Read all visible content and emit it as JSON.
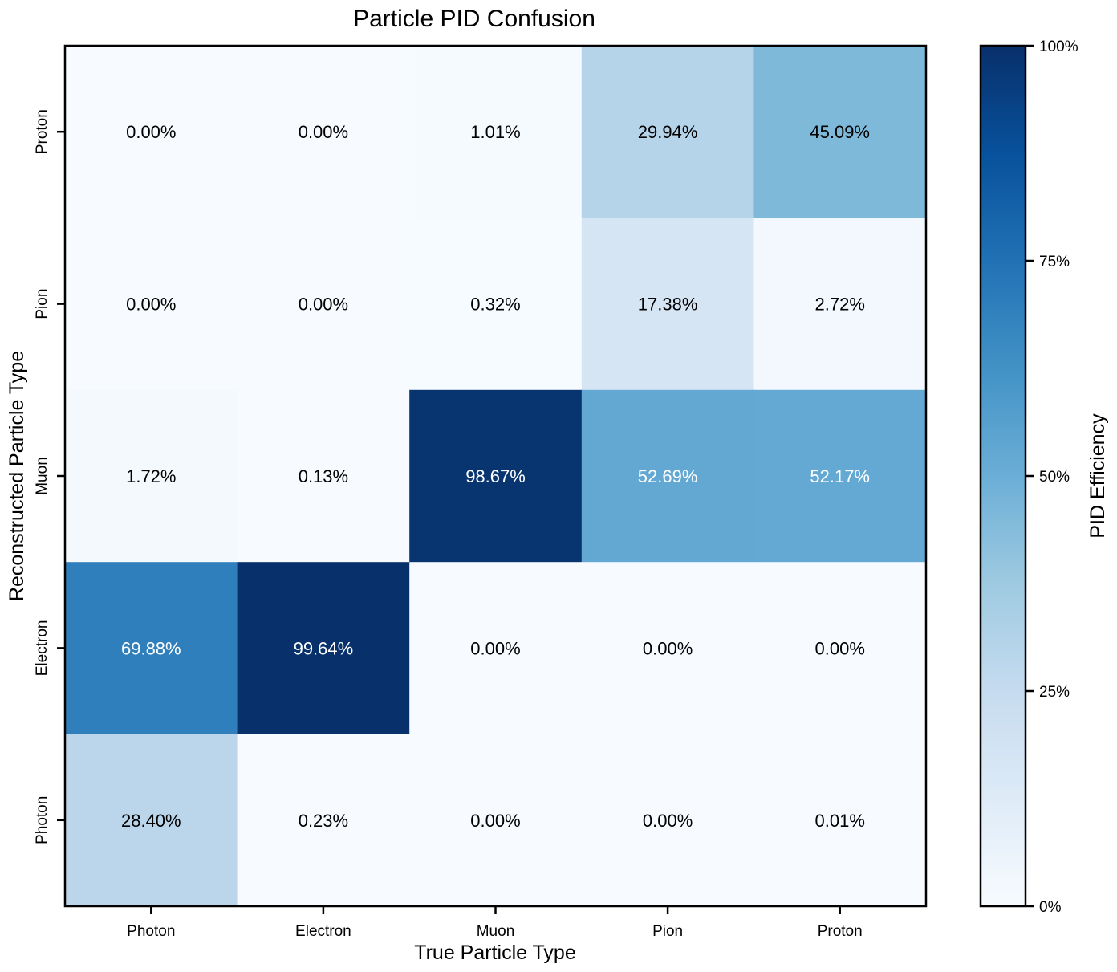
{
  "chart_data": {
    "type": "heatmap",
    "title": "Particle PID Confusion",
    "xlabel": "True Particle Type",
    "ylabel": "Reconstructed Particle Type",
    "x_categories": [
      "Photon",
      "Electron",
      "Muon",
      "Pion",
      "Proton"
    ],
    "y_categories": [
      "Proton",
      "Pion",
      "Muon",
      "Electron",
      "Photon"
    ],
    "values": [
      [
        0.0,
        0.0,
        1.01,
        29.94,
        45.09
      ],
      [
        0.0,
        0.0,
        0.32,
        17.38,
        2.72
      ],
      [
        1.72,
        0.13,
        98.67,
        52.69,
        52.17
      ],
      [
        69.88,
        99.64,
        0.0,
        0.0,
        0.0
      ],
      [
        28.4,
        0.23,
        0.0,
        0.0,
        0.01
      ]
    ],
    "cell_labels": [
      [
        "0.00%",
        "0.00%",
        "1.01%",
        "29.94%",
        "45.09%"
      ],
      [
        "0.00%",
        "0.00%",
        "0.32%",
        "17.38%",
        "2.72%"
      ],
      [
        "1.72%",
        "0.13%",
        "98.67%",
        "52.69%",
        "52.17%"
      ],
      [
        "69.88%",
        "99.64%",
        "0.00%",
        "0.00%",
        "0.00%"
      ],
      [
        "28.40%",
        "0.23%",
        "0.00%",
        "0.00%",
        "0.01%"
      ]
    ],
    "colorbar": {
      "label": "PID Efficiency",
      "range": [
        0,
        100
      ],
      "ticks": [
        0,
        25,
        50,
        75,
        100
      ],
      "tick_labels": [
        "0%",
        "25%",
        "50%",
        "75%",
        "100%"
      ]
    },
    "colormap": "Blues",
    "colors": {
      "low": "#f7fbff",
      "high": "#08306b",
      "text_dark": "#000000",
      "text_light": "#ffffff"
    }
  }
}
